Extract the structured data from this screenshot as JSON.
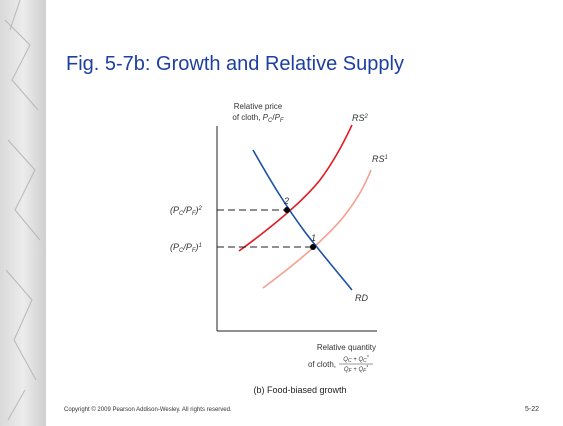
{
  "title": "Fig. 5-7b: Growth and Relative Supply",
  "y_axis_label": {
    "line1": "Relative price",
    "line2": [
      "of cloth, ",
      "P",
      "C",
      "/",
      "P",
      "F"
    ]
  },
  "x_axis_label": {
    "line1": "Relative quantity",
    "line2": "of cloth, ",
    "numerator": [
      "Q",
      "C",
      " + ",
      "Q",
      "C",
      "*"
    ],
    "denominator": [
      "Q",
      "F",
      " + ",
      "Q",
      "F",
      "*"
    ]
  },
  "curves": {
    "rs2": [
      "RS",
      "2"
    ],
    "rs1": [
      "RS",
      "1"
    ],
    "rd": "RD"
  },
  "points": {
    "p2": "2",
    "p1": "1"
  },
  "price_labels": {
    "level2": [
      "(P",
      "C",
      "/P",
      "F",
      ")",
      "2"
    ],
    "level1": [
      "(P",
      "C",
      "/P",
      "F",
      ")",
      "1"
    ]
  },
  "caption": "(b) Food-biased growth",
  "footer": {
    "copyright": "Copyright © 2009 Pearson Addison-Wesley. All rights reserved.",
    "slide_number": "5-22"
  }
}
